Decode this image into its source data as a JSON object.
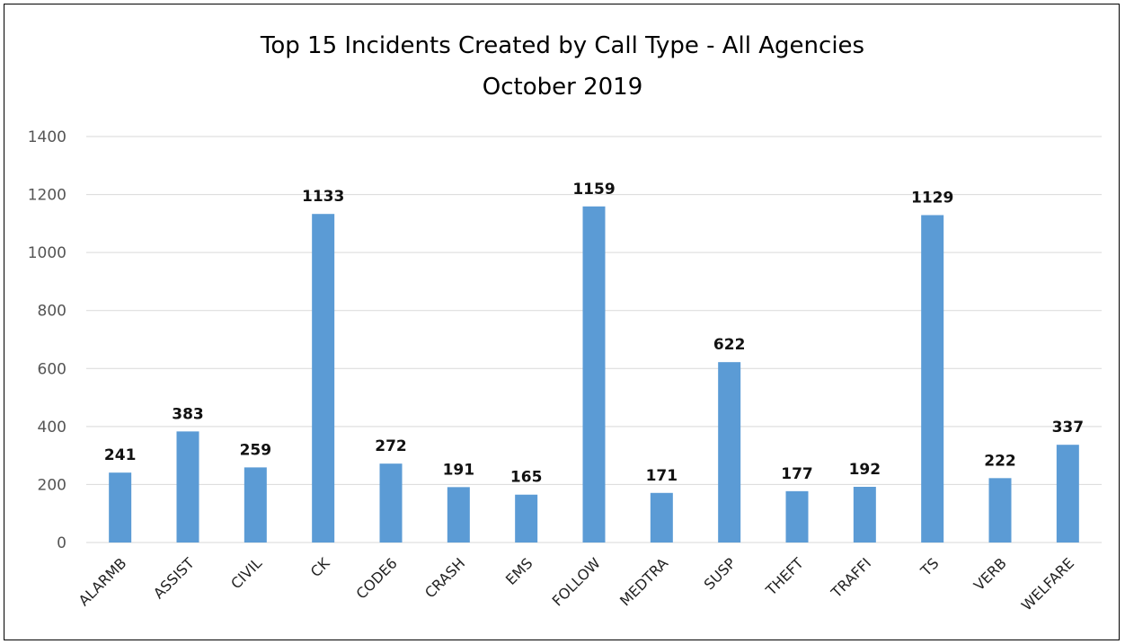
{
  "chart_data": {
    "type": "bar",
    "title": "Top 15 Incidents Created by Call Type - All Agencies",
    "subtitle": "October 2019",
    "xlabel": "",
    "ylabel": "",
    "ylim": [
      0,
      1400
    ],
    "yticks": [
      0,
      200,
      400,
      600,
      800,
      1000,
      1200,
      1400
    ],
    "grid": true,
    "bar_color": "#5b9bd5",
    "categories": [
      "ALARMB",
      "ASSIST",
      "CIVIL",
      "CK",
      "CODE6",
      "CRASH",
      "EMS",
      "FOLLOW",
      "MEDTRA",
      "SUSP",
      "THEFT",
      "TRAFFI",
      "TS",
      "VERB",
      "WELFARE"
    ],
    "values": [
      241,
      383,
      259,
      1133,
      272,
      191,
      165,
      1159,
      171,
      622,
      177,
      192,
      1129,
      222,
      337
    ],
    "data_labels": [
      "241",
      "383",
      "259",
      "1133",
      "272",
      "191",
      "165",
      "1159",
      "171",
      "622",
      "177",
      "192",
      "1129",
      "222",
      "337"
    ]
  }
}
